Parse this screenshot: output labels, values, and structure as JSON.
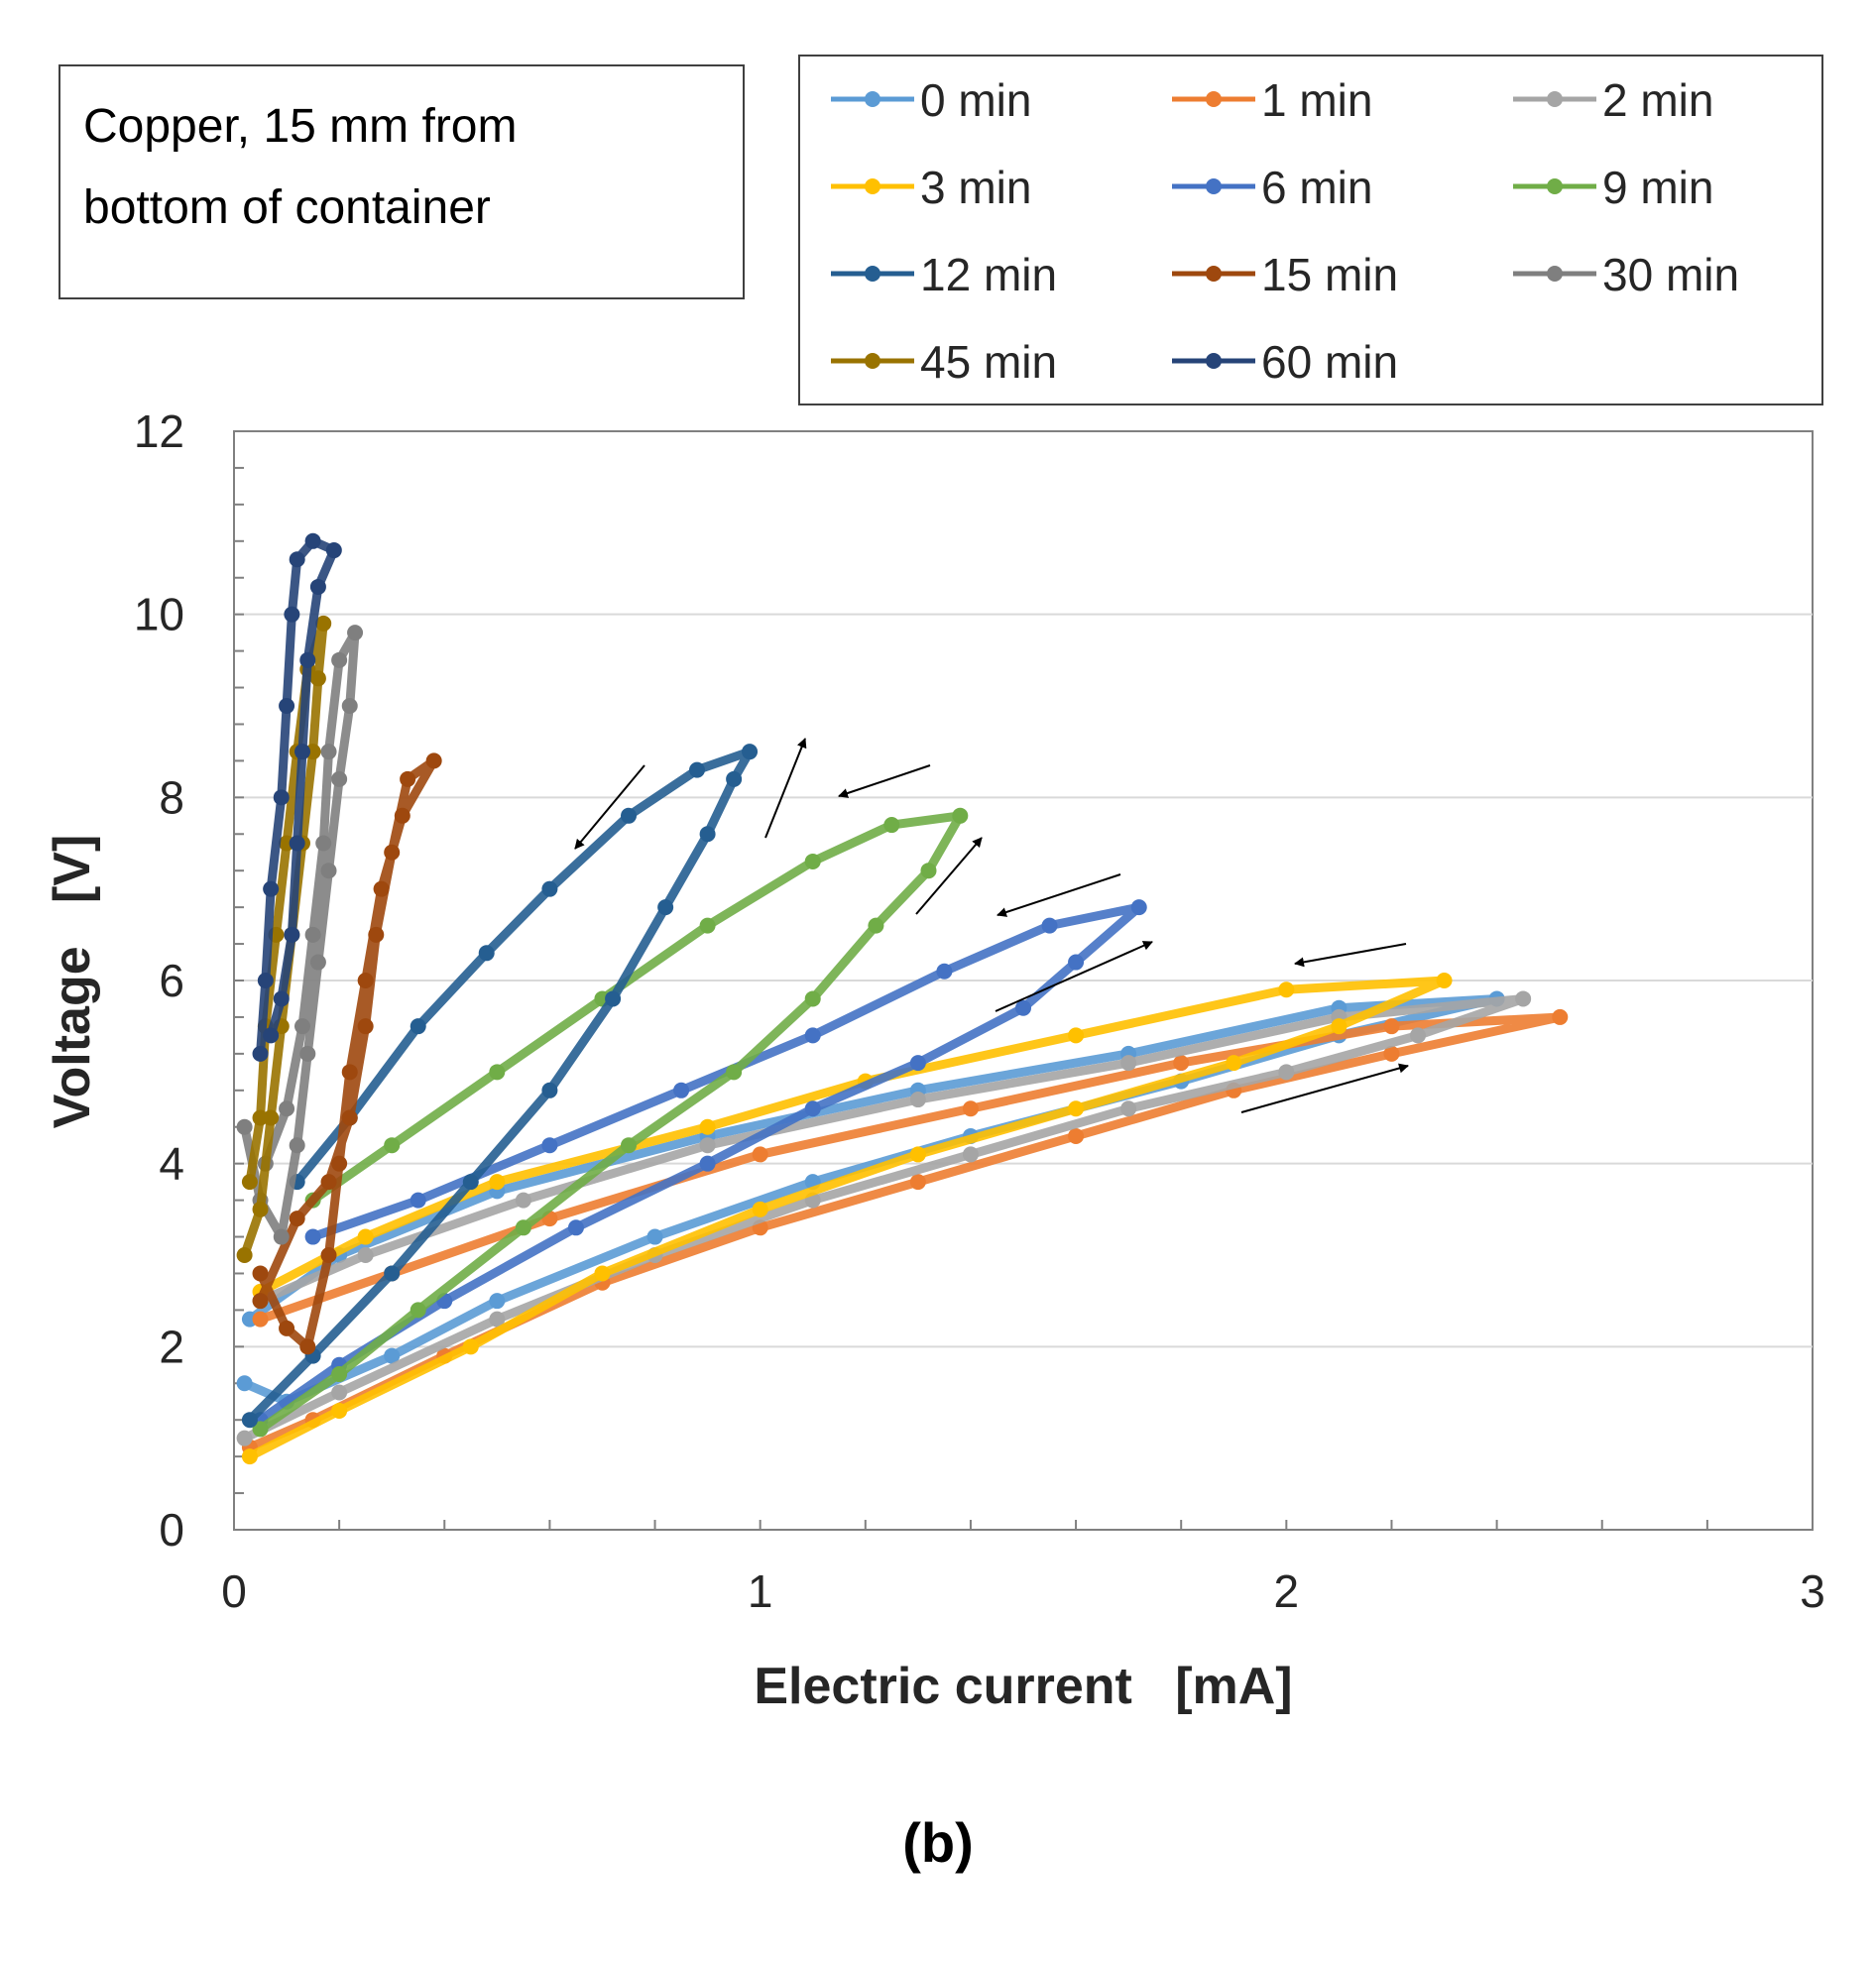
{
  "chart_data": {
    "type": "scatter",
    "annotation": [
      "Copper, 15 mm from",
      "bottom of container"
    ],
    "xlabel": "Electric current   [mA]",
    "ylabel": "Voltage   [V]",
    "xlim": [
      0,
      3
    ],
    "ylim": [
      0,
      12
    ],
    "xticks": [
      0,
      1,
      2,
      3
    ],
    "yticks": [
      0,
      2,
      4,
      6,
      8,
      10,
      12
    ],
    "grid": "horizontal",
    "legend_position": "top-right",
    "panel_label": "(b)",
    "series": [
      {
        "name": "0 min",
        "color": "#5b9bd5",
        "points": [
          [
            0.02,
            1.6
          ],
          [
            0.1,
            1.4
          ],
          [
            0.3,
            1.9
          ],
          [
            0.5,
            2.5
          ],
          [
            0.8,
            3.2
          ],
          [
            1.1,
            3.8
          ],
          [
            1.4,
            4.3
          ],
          [
            1.8,
            4.9
          ],
          [
            2.1,
            5.4
          ],
          [
            2.4,
            5.8
          ],
          [
            2.1,
            5.7
          ],
          [
            1.7,
            5.2
          ],
          [
            1.3,
            4.8
          ],
          [
            0.9,
            4.3
          ],
          [
            0.5,
            3.7
          ],
          [
            0.2,
            3.0
          ],
          [
            0.03,
            2.3
          ]
        ]
      },
      {
        "name": "1 min",
        "color": "#ed7d31",
        "points": [
          [
            0.03,
            0.9
          ],
          [
            0.15,
            1.2
          ],
          [
            0.4,
            1.9
          ],
          [
            0.7,
            2.7
          ],
          [
            1.0,
            3.3
          ],
          [
            1.3,
            3.8
          ],
          [
            1.6,
            4.3
          ],
          [
            1.9,
            4.8
          ],
          [
            2.2,
            5.2
          ],
          [
            2.52,
            5.6
          ],
          [
            2.2,
            5.5
          ],
          [
            1.8,
            5.1
          ],
          [
            1.4,
            4.6
          ],
          [
            1.0,
            4.1
          ],
          [
            0.6,
            3.4
          ],
          [
            0.3,
            2.8
          ],
          [
            0.05,
            2.3
          ]
        ]
      },
      {
        "name": "2 min",
        "color": "#a5a5a5",
        "points": [
          [
            0.02,
            1.0
          ],
          [
            0.2,
            1.5
          ],
          [
            0.5,
            2.3
          ],
          [
            0.8,
            3.0
          ],
          [
            1.1,
            3.6
          ],
          [
            1.4,
            4.1
          ],
          [
            1.7,
            4.6
          ],
          [
            2.0,
            5.0
          ],
          [
            2.25,
            5.4
          ],
          [
            2.45,
            5.8
          ],
          [
            2.1,
            5.6
          ],
          [
            1.7,
            5.1
          ],
          [
            1.3,
            4.7
          ],
          [
            0.9,
            4.2
          ],
          [
            0.55,
            3.6
          ],
          [
            0.25,
            3.0
          ],
          [
            0.05,
            2.5
          ]
        ]
      },
      {
        "name": "3 min",
        "color": "#ffc000",
        "points": [
          [
            0.03,
            0.8
          ],
          [
            0.2,
            1.3
          ],
          [
            0.45,
            2.0
          ],
          [
            0.7,
            2.8
          ],
          [
            1.0,
            3.5
          ],
          [
            1.3,
            4.1
          ],
          [
            1.6,
            4.6
          ],
          [
            1.9,
            5.1
          ],
          [
            2.1,
            5.5
          ],
          [
            2.3,
            6.0
          ],
          [
            2.0,
            5.9
          ],
          [
            1.6,
            5.4
          ],
          [
            1.2,
            4.9
          ],
          [
            0.9,
            4.4
          ],
          [
            0.5,
            3.8
          ],
          [
            0.25,
            3.2
          ],
          [
            0.05,
            2.6
          ]
        ]
      },
      {
        "name": "6 min",
        "color": "#4472c4",
        "points": [
          [
            0.05,
            1.2
          ],
          [
            0.2,
            1.8
          ],
          [
            0.4,
            2.5
          ],
          [
            0.65,
            3.3
          ],
          [
            0.9,
            4.0
          ],
          [
            1.1,
            4.6
          ],
          [
            1.3,
            5.1
          ],
          [
            1.5,
            5.7
          ],
          [
            1.6,
            6.2
          ],
          [
            1.72,
            6.8
          ],
          [
            1.55,
            6.6
          ],
          [
            1.35,
            6.1
          ],
          [
            1.1,
            5.4
          ],
          [
            0.85,
            4.8
          ],
          [
            0.6,
            4.2
          ],
          [
            0.35,
            3.6
          ],
          [
            0.15,
            3.2
          ]
        ]
      },
      {
        "name": "9 min",
        "color": "#70ad47",
        "points": [
          [
            0.05,
            1.1
          ],
          [
            0.2,
            1.7
          ],
          [
            0.35,
            2.4
          ],
          [
            0.55,
            3.3
          ],
          [
            0.75,
            4.2
          ],
          [
            0.95,
            5.0
          ],
          [
            1.1,
            5.8
          ],
          [
            1.22,
            6.6
          ],
          [
            1.32,
            7.2
          ],
          [
            1.38,
            7.8
          ],
          [
            1.25,
            7.7
          ],
          [
            1.1,
            7.3
          ],
          [
            0.9,
            6.6
          ],
          [
            0.7,
            5.8
          ],
          [
            0.5,
            5.0
          ],
          [
            0.3,
            4.2
          ],
          [
            0.15,
            3.6
          ]
        ]
      },
      {
        "name": "12 min",
        "color": "#255e91",
        "points": [
          [
            0.03,
            1.2
          ],
          [
            0.15,
            1.9
          ],
          [
            0.3,
            2.8
          ],
          [
            0.45,
            3.8
          ],
          [
            0.6,
            4.8
          ],
          [
            0.72,
            5.8
          ],
          [
            0.82,
            6.8
          ],
          [
            0.9,
            7.6
          ],
          [
            0.95,
            8.2
          ],
          [
            0.98,
            8.5
          ],
          [
            0.88,
            8.3
          ],
          [
            0.75,
            7.8
          ],
          [
            0.6,
            7.0
          ],
          [
            0.48,
            6.3
          ],
          [
            0.35,
            5.5
          ],
          [
            0.22,
            4.5
          ],
          [
            0.12,
            3.8
          ]
        ]
      },
      {
        "name": "15 min",
        "color": "#9e480e",
        "points": [
          [
            0.05,
            2.8
          ],
          [
            0.1,
            2.2
          ],
          [
            0.14,
            2.0
          ],
          [
            0.18,
            3.0
          ],
          [
            0.2,
            4.0
          ],
          [
            0.22,
            5.0
          ],
          [
            0.25,
            6.0
          ],
          [
            0.28,
            7.0
          ],
          [
            0.32,
            7.8
          ],
          [
            0.38,
            8.4
          ],
          [
            0.33,
            8.2
          ],
          [
            0.3,
            7.4
          ],
          [
            0.27,
            6.5
          ],
          [
            0.25,
            5.5
          ],
          [
            0.22,
            4.5
          ],
          [
            0.18,
            3.8
          ],
          [
            0.12,
            3.4
          ],
          [
            0.05,
            2.5
          ]
        ]
      },
      {
        "name": "30 min",
        "color": "#7f7f7f",
        "points": [
          [
            0.02,
            4.4
          ],
          [
            0.05,
            3.6
          ],
          [
            0.09,
            3.2
          ],
          [
            0.12,
            4.2
          ],
          [
            0.14,
            5.2
          ],
          [
            0.16,
            6.2
          ],
          [
            0.18,
            7.2
          ],
          [
            0.2,
            8.2
          ],
          [
            0.22,
            9.0
          ],
          [
            0.23,
            9.8
          ],
          [
            0.2,
            9.5
          ],
          [
            0.18,
            8.5
          ],
          [
            0.17,
            7.5
          ],
          [
            0.15,
            6.5
          ],
          [
            0.13,
            5.5
          ],
          [
            0.1,
            4.6
          ],
          [
            0.06,
            4.0
          ]
        ]
      },
      {
        "name": "45 min",
        "color": "#997300",
        "points": [
          [
            0.02,
            3.0
          ],
          [
            0.05,
            3.5
          ],
          [
            0.07,
            4.5
          ],
          [
            0.09,
            5.5
          ],
          [
            0.11,
            6.5
          ],
          [
            0.13,
            7.5
          ],
          [
            0.15,
            8.5
          ],
          [
            0.16,
            9.3
          ],
          [
            0.17,
            9.9
          ],
          [
            0.14,
            9.4
          ],
          [
            0.12,
            8.5
          ],
          [
            0.1,
            7.5
          ],
          [
            0.08,
            6.5
          ],
          [
            0.06,
            5.5
          ],
          [
            0.05,
            4.5
          ],
          [
            0.03,
            3.8
          ]
        ]
      },
      {
        "name": "60 min",
        "color": "#264478",
        "points": [
          [
            0.05,
            5.2
          ],
          [
            0.06,
            6.0
          ],
          [
            0.07,
            7.0
          ],
          [
            0.09,
            8.0
          ],
          [
            0.1,
            9.0
          ],
          [
            0.11,
            10.0
          ],
          [
            0.12,
            10.6
          ],
          [
            0.15,
            10.8
          ],
          [
            0.19,
            10.7
          ],
          [
            0.16,
            10.3
          ],
          [
            0.14,
            9.5
          ],
          [
            0.13,
            8.5
          ],
          [
            0.12,
            7.5
          ],
          [
            0.11,
            6.5
          ],
          [
            0.09,
            5.8
          ],
          [
            0.07,
            5.4
          ]
        ]
      }
    ]
  }
}
